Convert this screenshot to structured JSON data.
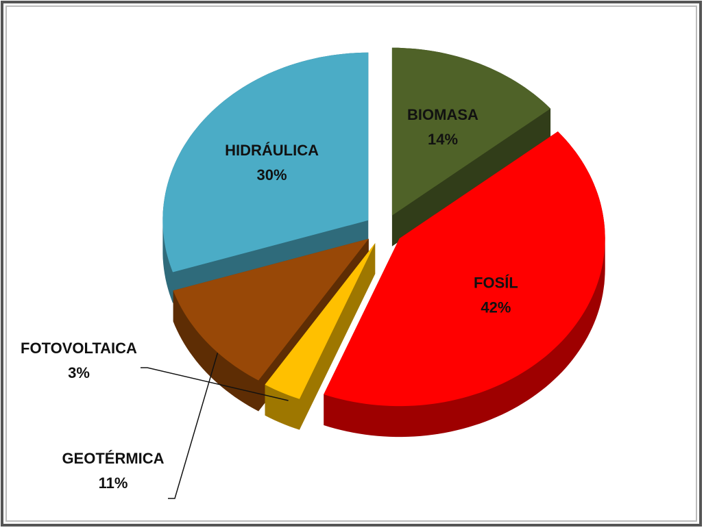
{
  "chart_data": {
    "type": "pie",
    "categories": [
      "BIOMASA",
      "FOSÍL",
      "FOTOVOLTAICA",
      "GEOTÉRMICA",
      "HIDRÁULICA"
    ],
    "values": [
      14,
      42,
      3,
      11,
      30
    ],
    "value_labels": [
      "14%",
      "42%",
      "3%",
      "11%",
      "30%"
    ],
    "colors": [
      "#4f6228",
      "#ff0000",
      "#ffc000",
      "#984807",
      "#4bacc6"
    ]
  }
}
